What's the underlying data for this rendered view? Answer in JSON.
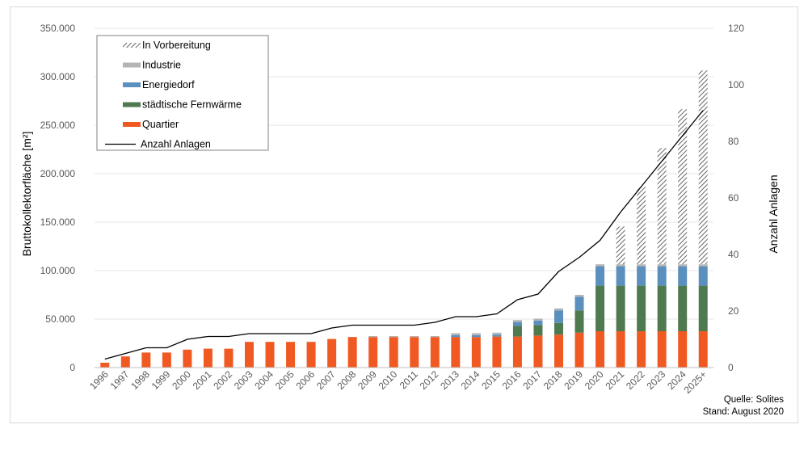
{
  "chart_data": {
    "type": "bar",
    "stacked": true,
    "categories": [
      "1996",
      "1997",
      "1998",
      "1999",
      "2000",
      "2001",
      "2002",
      "2003",
      "2004",
      "2005",
      "2006",
      "2007",
      "2008",
      "2009",
      "2010",
      "2011",
      "2012",
      "2013",
      "2014",
      "2015",
      "2016",
      "2017",
      "2018",
      "2019",
      "2020",
      "2021",
      "2022",
      "2023",
      "2024",
      "2025+"
    ],
    "ylabel": "Bruttokollektorfläche [m²]",
    "y2label": "Anzahl Anlagen",
    "ylim": [
      0,
      350000
    ],
    "y2lim": [
      0,
      120
    ],
    "yticks": [
      "0",
      "50.000",
      "100.000",
      "150.000",
      "200.000",
      "250.000",
      "300.000",
      "350.000"
    ],
    "y2ticks": [
      "0",
      "20",
      "40",
      "60",
      "80",
      "100",
      "120"
    ],
    "grid": true,
    "legend_position": "top-left",
    "legend_order": [
      "in_vorbereitung",
      "industrie",
      "energiedorf",
      "staedtische_fernwaerme",
      "quartier",
      "anzahl_anlagen"
    ],
    "series": [
      {
        "key": "quartier",
        "name": "Quartier",
        "color": "#f05a22",
        "values": [
          5000,
          11500,
          15500,
          15500,
          18500,
          19500,
          19500,
          26500,
          26500,
          26500,
          26500,
          29500,
          31500,
          31500,
          31500,
          31500,
          31500,
          31500,
          31500,
          32000,
          32000,
          33000,
          34000,
          36000,
          37500,
          37500,
          37500,
          37500,
          37500,
          37500
        ]
      },
      {
        "key": "staedtische_fernwaerme",
        "name": "städtische Fernwärme",
        "color": "#4f7a50",
        "values": [
          0,
          0,
          0,
          0,
          0,
          0,
          0,
          0,
          0,
          0,
          0,
          0,
          0,
          0,
          0,
          0,
          0,
          0,
          0,
          0,
          11000,
          11000,
          12000,
          23000,
          47000,
          47000,
          47000,
          47000,
          47000,
          47000
        ]
      },
      {
        "key": "energiedorf",
        "name": "Energiedorf",
        "color": "#5b8fbe",
        "values": [
          0,
          0,
          0,
          0,
          0,
          0,
          0,
          0,
          0,
          0,
          0,
          0,
          0,
          0,
          0,
          0,
          0,
          2000,
          2000,
          2000,
          4000,
          4500,
          13000,
          14000,
          20000,
          20000,
          20000,
          20000,
          20000,
          20000
        ]
      },
      {
        "key": "industrie",
        "name": "Industrie",
        "color": "#b4b4b4",
        "values": [
          0,
          0,
          0,
          0,
          0,
          0,
          0,
          0,
          0,
          0,
          0,
          0,
          0,
          1000,
          1000,
          1000,
          1000,
          2000,
          2000,
          2000,
          2000,
          2000,
          2000,
          2000,
          2000,
          2000,
          2000,
          2000,
          2000,
          2000
        ]
      },
      {
        "key": "in_vorbereitung",
        "name": "In Vorbereitung",
        "pattern": "hatched",
        "values": [
          0,
          0,
          0,
          0,
          0,
          0,
          0,
          0,
          0,
          0,
          0,
          0,
          0,
          0,
          0,
          0,
          0,
          0,
          0,
          0,
          0,
          0,
          0,
          0,
          0,
          39000,
          80000,
          120000,
          160000,
          200000
        ]
      }
    ],
    "line_series": {
      "key": "anzahl_anlagen",
      "name": "Anzahl Anlagen",
      "axis": "right",
      "color": "#000000",
      "values": [
        3,
        5,
        7,
        7,
        10,
        11,
        11,
        12,
        12,
        12,
        12,
        14,
        15,
        15,
        15,
        15,
        16,
        18,
        18,
        19,
        24,
        26,
        34,
        39,
        45,
        55,
        64,
        73,
        82,
        91
      ]
    },
    "notes": [
      "Quelle: Solites",
      "Stand: August 2020"
    ]
  }
}
